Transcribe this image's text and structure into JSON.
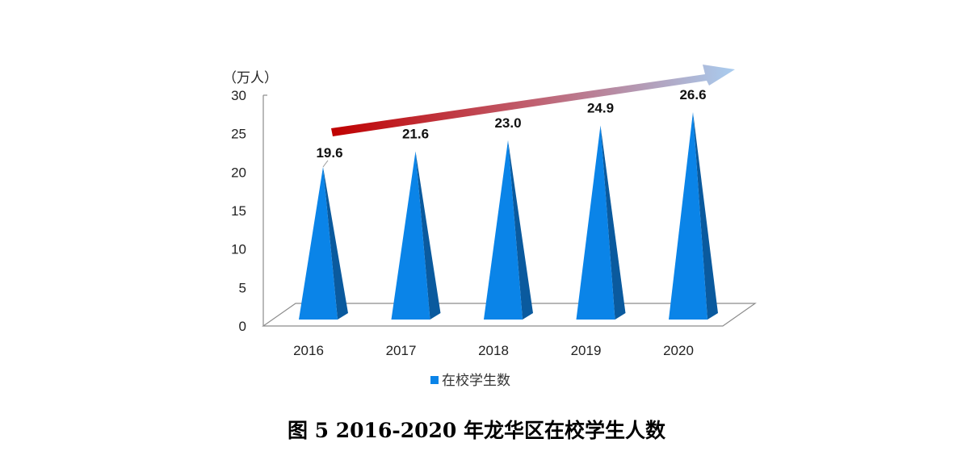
{
  "chart_data": {
    "type": "bar",
    "style": "3d-cone",
    "categories": [
      "2016",
      "2017",
      "2018",
      "2019",
      "2020"
    ],
    "series": [
      {
        "name": "在校学生数",
        "values": [
          19.6,
          21.6,
          23.0,
          24.9,
          26.6
        ],
        "color": "#0a84e8"
      }
    ],
    "data_labels": [
      "19.6",
      "21.6",
      "23.0",
      "24.9",
      "26.6"
    ],
    "ylabel": "（万人）",
    "ylim": [
      0,
      30
    ],
    "yticks": [
      "0",
      "5",
      "10",
      "15",
      "20",
      "25",
      "30"
    ],
    "grid": false,
    "legend": "bottom",
    "trend_arrow": {
      "from_color": "#c00000",
      "to_color": "#a9cdf0",
      "direction": "up-right"
    }
  },
  "caption": "图 5   2016-2020 年龙华区在校学生人数"
}
